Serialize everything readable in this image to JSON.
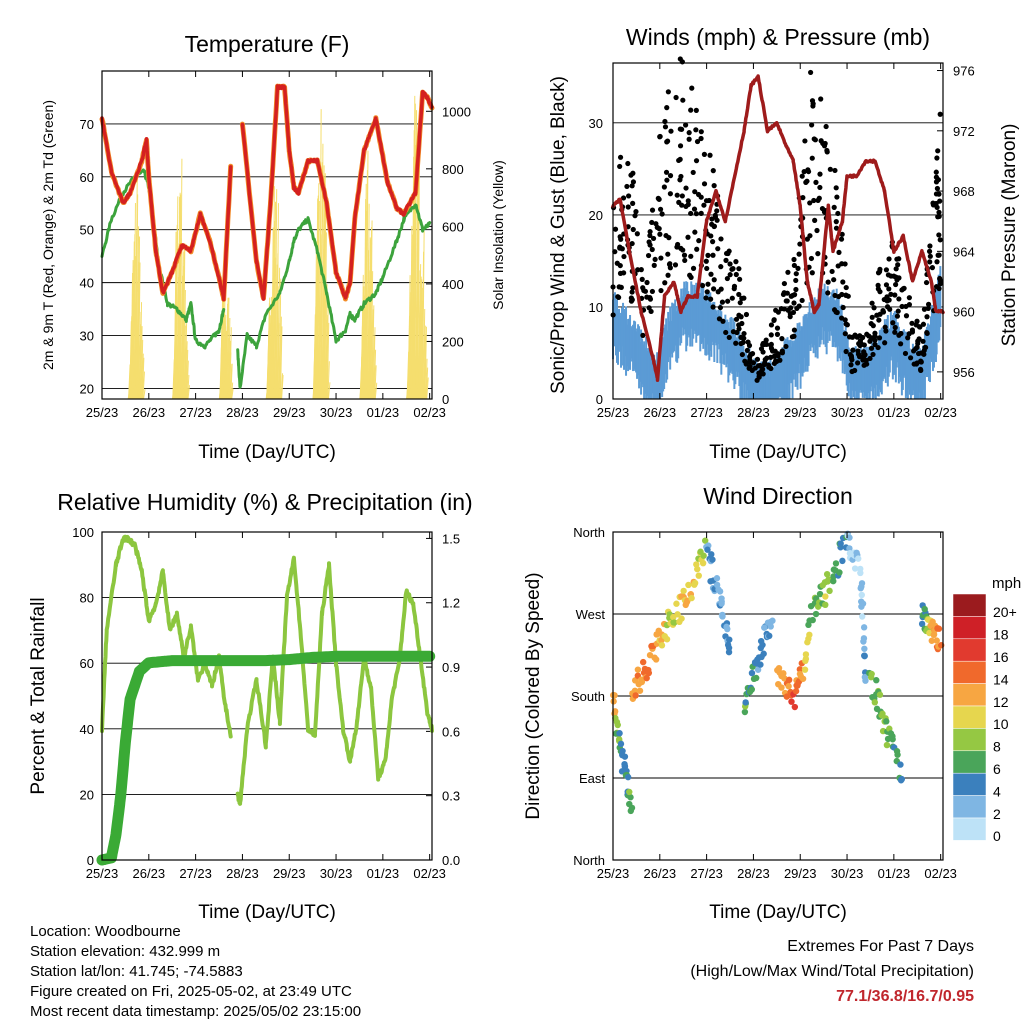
{
  "panels": {
    "temperature": {
      "title": "Temperature (F)",
      "ylabel_left": "2m & 9m T (Red, Orange) & 2m Td (Green)",
      "ylabel_right": "Solar Insolation (Yellow)",
      "xlabel": "Time (Day/UTC)"
    },
    "winds": {
      "title": "Winds (mph) & Pressure (mb)",
      "ylabel_left": "Sonic/Prop Wind & Gust (Blue, Black)",
      "ylabel_right": "Station Pressure (Maroon)",
      "xlabel": "Time (Day/UTC)"
    },
    "humidity": {
      "title": "Relative Humidity (%) & Precipitation (in)",
      "ylabel_left": "Percent & Total Rainfall",
      "xlabel": "Time (Day/UTC)"
    },
    "direction": {
      "title": "Wind Direction",
      "ylabel_left": "Direction (Colored By Speed)",
      "xlabel": "Time (Day/UTC)",
      "colorbar_title": "mph"
    }
  },
  "footer": {
    "location": "Location: Woodbourne",
    "elevation": "Station elevation: 432.999 m",
    "latlon": "Station lat/lon: 41.745; -74.5883",
    "created": "Figure created on Fri, 2025-05-02, at 23:49 UTC",
    "timestamp": "Most recent data timestamp: 2025/05/02 23:15:00",
    "extremes_title": "Extremes For Past 7 Days",
    "extremes_subtitle": "(High/Low/Max Wind/Total Precipitation)",
    "extremes_values": "77.1/36.8/16.7/0.95"
  },
  "colors": {
    "temp2m": "#d42020",
    "temp9m": "#f28c28",
    "dewpoint": "#3ca33c",
    "solar": "#f5de6e",
    "wind": "#5b9bd5",
    "gust": "#000000",
    "pressure": "#9e1b1b",
    "rh": "#8cc63f",
    "precip": "#3aaa35"
  },
  "chart_data": [
    {
      "id": "temperature",
      "type": "line",
      "x_ticks": [
        "25/23",
        "26/23",
        "27/23",
        "28/23",
        "29/23",
        "30/23",
        "01/23",
        "02/23"
      ],
      "xlim": [
        0,
        7.05
      ],
      "ylim": [
        18,
        80
      ],
      "y_ticks": [
        20,
        30,
        40,
        50,
        60,
        70
      ],
      "y2lim": [
        0,
        1140
      ],
      "y2_ticks": [
        0,
        200,
        400,
        600,
        800,
        1000
      ],
      "series": [
        {
          "key": "temp2m",
          "x": [
            0,
            0.2,
            0.45,
            0.6,
            0.85,
            0.95,
            1.0,
            1.15,
            1.3,
            1.5,
            1.7,
            1.9,
            2.1,
            2.3,
            2.5,
            2.6,
            2.75,
            2.8,
            2.9,
            3.0,
            3.3,
            3.45,
            3.6,
            3.75,
            3.9,
            4.0,
            4.1,
            4.2,
            4.4,
            4.6,
            4.8,
            5.0,
            5.2,
            5.3,
            5.4,
            5.6,
            5.85,
            6.1,
            6.3,
            6.45,
            6.7,
            6.85,
            6.95,
            7.05
          ],
          "y": [
            71,
            61,
            55,
            57,
            63,
            67,
            60,
            46,
            38,
            42,
            47,
            46,
            53,
            48,
            41,
            37,
            62,
            null,
            null,
            70,
            44,
            37,
            55,
            77,
            77,
            65,
            58,
            57,
            63,
            63,
            55,
            42,
            37,
            40,
            52,
            65,
            71,
            59,
            54,
            53,
            57,
            76,
            75,
            73
          ]
        },
        {
          "key": "dewpoint",
          "x": [
            0,
            0.2,
            0.45,
            0.7,
            0.9,
            1.0,
            1.1,
            1.2,
            1.4,
            1.6,
            1.8,
            1.9,
            2.0,
            2.2,
            2.4,
            2.5,
            2.6,
            2.75,
            2.8,
            2.9,
            2.95,
            3.1,
            3.3,
            3.5,
            3.8,
            4.0,
            4.1,
            4.2,
            4.4,
            4.6,
            4.8,
            5.0,
            5.2,
            5.3,
            5.4,
            5.6,
            5.85,
            6.0,
            6.3,
            6.45,
            6.7,
            6.85,
            7.0
          ],
          "y": [
            45,
            52,
            57,
            60,
            61,
            58,
            52,
            44,
            36,
            35,
            33,
            36,
            29,
            28,
            30,
            31,
            35,
            null,
            null,
            27,
            20,
            30,
            28,
            34,
            38,
            44,
            48,
            50,
            52,
            46,
            38,
            29,
            31,
            34,
            33,
            36,
            38,
            41,
            48,
            52,
            55,
            50,
            51
          ]
        },
        {
          "key": "solar",
          "x": [
            0,
            0.55,
            0.62,
            0.72,
            0.8,
            0.9,
            1.5,
            1.55,
            1.65,
            1.75,
            1.85,
            2.5,
            2.55,
            2.62,
            2.7,
            2.78,
            3.5,
            3.55,
            3.65,
            3.75,
            3.85,
            4.5,
            4.55,
            4.65,
            4.75,
            4.85,
            5.5,
            5.55,
            5.65,
            5.75,
            5.85,
            6.5,
            6.55,
            6.65,
            6.75,
            6.85,
            6.95
          ],
          "y": [
            0,
            0,
            500,
            900,
            400,
            0,
            0,
            600,
            1000,
            500,
            0,
            0,
            500,
            350,
            400,
            0,
            0,
            400,
            850,
            700,
            0,
            0,
            700,
            1050,
            750,
            0,
            0,
            500,
            900,
            600,
            0,
            0,
            500,
            1100,
            900,
            600,
            0
          ]
        }
      ]
    },
    {
      "id": "winds",
      "type": "scatter",
      "x_ticks": [
        "25/23",
        "26/23",
        "27/23",
        "28/23",
        "29/23",
        "30/23",
        "01/23",
        "02/23"
      ],
      "xlim": [
        0,
        7.05
      ],
      "ylim": [
        0,
        36.5
      ],
      "y_ticks": [
        0,
        10,
        20,
        30
      ],
      "y2lim": [
        954.2,
        976.5
      ],
      "y2_ticks": [
        956,
        960,
        964,
        968,
        972,
        976
      ],
      "series": [
        {
          "key": "gust",
          "name_ref": "Gust",
          "x": [
            0,
            0.3,
            0.6,
            0.9,
            1.2,
            1.5,
            1.8,
            2.1,
            2.4,
            2.7,
            3.0,
            3.3,
            3.6,
            3.9,
            4.2,
            4.5,
            4.8,
            5.1,
            5.4,
            5.7,
            6.0,
            6.3,
            6.6,
            6.9,
            7.0
          ],
          "y": [
            15,
            22,
            10,
            18,
            25,
            26,
            22,
            18,
            12,
            10,
            3,
            5,
            8,
            12,
            25,
            23,
            16,
            5,
            5,
            10,
            12,
            8,
            5,
            18,
            22
          ]
        },
        {
          "key": "wind",
          "name_ref": "Sonic/Prop Wind",
          "x": [
            0,
            0.3,
            0.6,
            0.9,
            1.2,
            1.5,
            1.8,
            2.1,
            2.4,
            2.7,
            3.0,
            3.3,
            3.6,
            3.9,
            4.2,
            4.5,
            4.8,
            5.1,
            5.4,
            5.7,
            6.0,
            6.3,
            6.6,
            6.9,
            7.0
          ],
          "y": [
            10,
            8,
            6,
            3,
            8,
            11,
            11,
            10,
            8,
            6,
            3,
            2,
            4,
            6,
            9,
            11,
            10,
            4,
            4,
            6,
            8,
            5,
            4,
            10,
            13
          ]
        },
        {
          "key": "pressure",
          "name_ref": "Station Pressure",
          "x": [
            0,
            0.15,
            0.35,
            0.6,
            0.85,
            0.95,
            1.1,
            1.3,
            1.45,
            1.6,
            1.8,
            2.0,
            2.2,
            2.4,
            2.6,
            2.8,
            2.95,
            3.1,
            3.3,
            3.5,
            3.7,
            3.85,
            4.0,
            4.15,
            4.3,
            4.4,
            4.6,
            4.7,
            4.9,
            5.0,
            5.2,
            5.4,
            5.6,
            5.8,
            6.0,
            6.2,
            6.4,
            6.6,
            6.8,
            6.9,
            7.05
          ],
          "y": [
            967,
            967.5,
            964,
            960,
            957,
            955.5,
            961,
            962,
            960,
            961,
            961,
            966,
            968,
            966,
            969,
            972,
            975,
            975.6,
            972,
            972.5,
            971,
            970,
            967,
            962,
            960,
            960.5,
            967,
            964,
            966,
            969,
            969,
            970,
            970,
            968,
            964,
            965,
            962,
            964,
            962,
            960,
            960
          ]
        }
      ]
    },
    {
      "id": "humidity",
      "type": "line",
      "x_ticks": [
        "25/23",
        "26/23",
        "27/23",
        "28/23",
        "29/23",
        "30/23",
        "01/23",
        "02/23"
      ],
      "xlim": [
        0,
        7.05
      ],
      "ylim": [
        0,
        100
      ],
      "y_ticks": [
        0,
        20,
        40,
        60,
        80,
        100
      ],
      "y2lim": [
        0,
        1.53
      ],
      "y2_ticks": [
        "0.0",
        "0.3",
        "0.6",
        "0.9",
        "1.2",
        "1.5"
      ],
      "series": [
        {
          "key": "rh",
          "x": [
            0,
            0.1,
            0.3,
            0.45,
            0.55,
            0.7,
            0.85,
            1.0,
            1.15,
            1.3,
            1.45,
            1.6,
            1.75,
            1.9,
            2.05,
            2.2,
            2.35,
            2.5,
            2.6,
            2.75,
            2.8,
            2.9,
            2.95,
            3.1,
            3.3,
            3.5,
            3.65,
            3.8,
            3.95,
            4.1,
            4.25,
            4.4,
            4.55,
            4.7,
            4.85,
            5.0,
            5.15,
            5.3,
            5.45,
            5.6,
            5.75,
            5.9,
            6.05,
            6.2,
            6.35,
            6.5,
            6.65,
            6.8,
            6.95,
            7.05
          ],
          "y": [
            40,
            70,
            90,
            98,
            98,
            96,
            88,
            73,
            78,
            88,
            70,
            75,
            62,
            71,
            55,
            60,
            53,
            62,
            50,
            38,
            null,
            20,
            17,
            40,
            55,
            35,
            62,
            42,
            80,
            92,
            68,
            40,
            38,
            75,
            90,
            60,
            40,
            30,
            42,
            62,
            52,
            25,
            30,
            50,
            60,
            82,
            78,
            62,
            45,
            40
          ]
        },
        {
          "key": "precip",
          "x": [
            0,
            0.2,
            0.3,
            0.4,
            0.5,
            0.6,
            0.8,
            1.0,
            1.5,
            2.0,
            3.0,
            3.5,
            4.0,
            4.5,
            5.0,
            6.0,
            7.0
          ],
          "y": [
            0,
            0.01,
            0.12,
            0.3,
            0.55,
            0.75,
            0.88,
            0.92,
            0.93,
            0.93,
            0.93,
            0.93,
            0.935,
            0.945,
            0.95,
            0.95,
            0.95
          ]
        }
      ]
    },
    {
      "id": "direction",
      "type": "scatter",
      "x_ticks": [
        "25/23",
        "26/23",
        "27/23",
        "28/23",
        "29/23",
        "30/23",
        "01/23",
        "02/23"
      ],
      "xlim": [
        0,
        7.05
      ],
      "y_ticks": [
        "North",
        "East",
        "South",
        "West",
        "North"
      ],
      "ylim": [
        0,
        360
      ],
      "colorbar": {
        "labels": [
          "20+",
          "18",
          "16",
          "14",
          "12",
          "10",
          "8",
          "6",
          "4",
          "2",
          "0"
        ],
        "colors": [
          "#9b1b1e",
          "#cf2027",
          "#e13a2f",
          "#f0692c",
          "#f7a642",
          "#e6d64e",
          "#95c843",
          "#4aa55a",
          "#3b80bd",
          "#7fb6e3",
          "#bde2f7"
        ]
      },
      "series": [
        {
          "name_ref": "segment-1",
          "x": [
            0,
            0.2,
            0.4
          ],
          "y": [
            180,
            110,
            60
          ],
          "speed": [
            12,
            4,
            6
          ]
        },
        {
          "name_ref": "segment-2",
          "x": [
            0.4,
            0.8,
            1.2
          ],
          "y": [
            180,
            220,
            260
          ],
          "speed": [
            12,
            14,
            9
          ]
        },
        {
          "name_ref": "segment-3",
          "x": [
            1.2,
            1.6,
            2.0
          ],
          "y": [
            260,
            290,
            340
          ],
          "speed": [
            8,
            12,
            8
          ]
        },
        {
          "name_ref": "segment-4",
          "x": [
            2.0,
            2.3,
            2.5
          ],
          "y": [
            340,
            280,
            220
          ],
          "speed": [
            4,
            2,
            4
          ]
        },
        {
          "name_ref": "segment-5",
          "x": [
            2.8,
            3.1,
            3.4
          ],
          "y": [
            170,
            220,
            270
          ],
          "speed": [
            6,
            4,
            2
          ]
        },
        {
          "name_ref": "segment-6",
          "x": [
            3.5,
            3.9,
            4.2
          ],
          "y": [
            200,
            180,
            240
          ],
          "speed": [
            12,
            14,
            10
          ]
        },
        {
          "name_ref": "segment-7",
          "x": [
            4.2,
            4.6,
            5.0
          ],
          "y": [
            270,
            300,
            350
          ],
          "speed": [
            6,
            8,
            4
          ]
        },
        {
          "name_ref": "segment-8",
          "x": [
            5.0,
            5.3,
            5.4
          ],
          "y": [
            360,
            310,
            200
          ],
          "speed": [
            2,
            0,
            4
          ]
        },
        {
          "name_ref": "segment-9",
          "x": [
            5.5,
            5.8,
            6.2
          ],
          "y": [
            200,
            150,
            90
          ],
          "speed": [
            6,
            8,
            4
          ]
        },
        {
          "name_ref": "segment-10",
          "x": [
            6.6,
            6.8,
            7.0
          ],
          "y": [
            270,
            250,
            240
          ],
          "speed": [
            4,
            12,
            14
          ]
        }
      ]
    }
  ]
}
